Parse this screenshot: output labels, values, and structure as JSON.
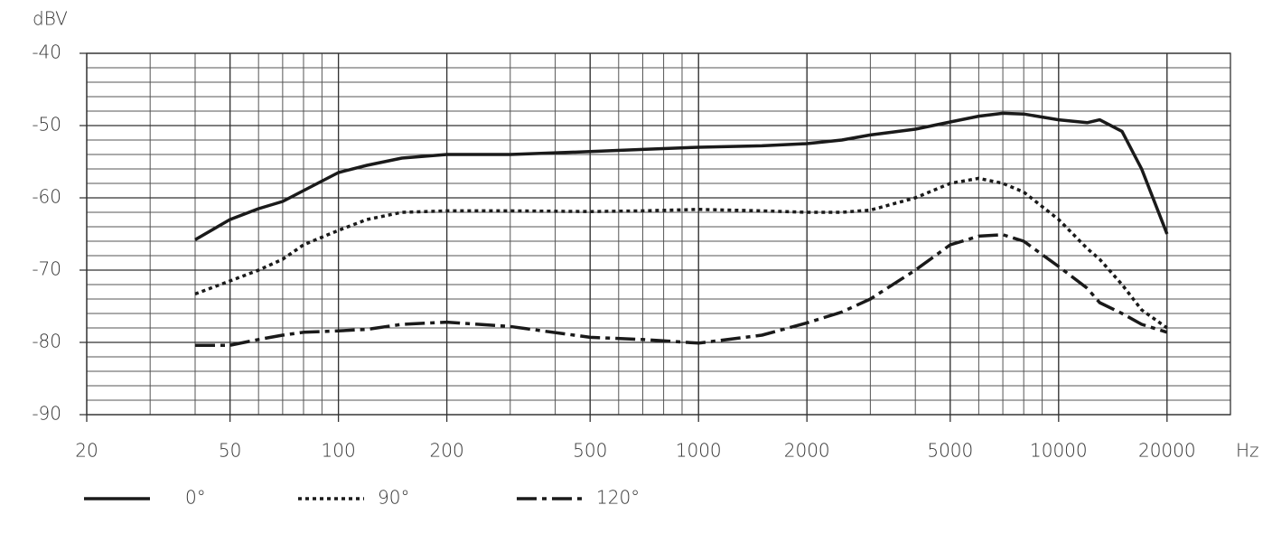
{
  "chart_data": {
    "type": "line",
    "y_label": "dBV",
    "x_label": "Hz",
    "log_x": true,
    "xlim": [
      20,
      30000
    ],
    "ylim": [
      -90,
      -40
    ],
    "xticks": [
      20,
      50,
      100,
      200,
      500,
      1000,
      2000,
      5000,
      10000,
      20000
    ],
    "yticks": [
      -40,
      -50,
      -60,
      -70,
      -80,
      -90
    ],
    "x_grid": [
      30,
      40,
      50,
      60,
      70,
      80,
      90,
      100,
      200,
      300,
      400,
      500,
      600,
      700,
      800,
      900,
      1000,
      2000,
      3000,
      4000,
      5000,
      6000,
      7000,
      8000,
      9000,
      10000,
      20000
    ],
    "y_grid": [
      -88,
      -86,
      -84,
      -82,
      -80,
      -78,
      -76,
      -74,
      -72,
      -70,
      -68,
      -66,
      -64,
      -62,
      -60,
      -58,
      -56,
      -54,
      -52,
      -50,
      -48,
      -46,
      -44,
      -42
    ],
    "x": [
      40,
      50,
      60,
      70,
      80,
      100,
      120,
      150,
      200,
      300,
      500,
      700,
      1000,
      1500,
      2000,
      2500,
      3000,
      4000,
      5000,
      6000,
      7000,
      8000,
      10000,
      12000,
      13000,
      15000,
      17000,
      20000
    ],
    "series": [
      {
        "name": "0°",
        "color": "#1a1a1a",
        "line_style": "solid",
        "values": [
          -65.8,
          -63,
          -61.5,
          -60.5,
          -59,
          -56.5,
          -55.5,
          -54.5,
          -54,
          -54,
          -53.6,
          -53.3,
          -53,
          -52.8,
          -52.5,
          -52,
          -51.3,
          -50.5,
          -49.5,
          -48.7,
          -48.3,
          -48.4,
          -49.2,
          -49.6,
          -49.2,
          -50.8,
          -56,
          -65
        ]
      },
      {
        "name": "90°",
        "color": "#1a1a1a",
        "line_style": "dotted",
        "values": [
          -73.3,
          -71.5,
          -70,
          -68.5,
          -66.5,
          -64.5,
          -63,
          -62,
          -61.8,
          -61.8,
          -61.9,
          -61.8,
          -61.6,
          -61.8,
          -62,
          -62,
          -61.7,
          -60,
          -58,
          -57.3,
          -58,
          -59.2,
          -63,
          -67,
          -68.5,
          -72,
          -75.5,
          -78
        ]
      },
      {
        "name": "120°",
        "color": "#1a1a1a",
        "line_style": "dashdot",
        "values": [
          -80.4,
          -80.4,
          -79.6,
          -79,
          -78.6,
          -78.4,
          -78.2,
          -77.5,
          -77.2,
          -77.8,
          -79.3,
          -79.6,
          -80.1,
          -79,
          -77.3,
          -75.8,
          -74,
          -70,
          -66.5,
          -65.3,
          -65.1,
          -66,
          -69.5,
          -72.5,
          -74.5,
          -76,
          -77.5,
          -78.6
        ]
      }
    ]
  }
}
